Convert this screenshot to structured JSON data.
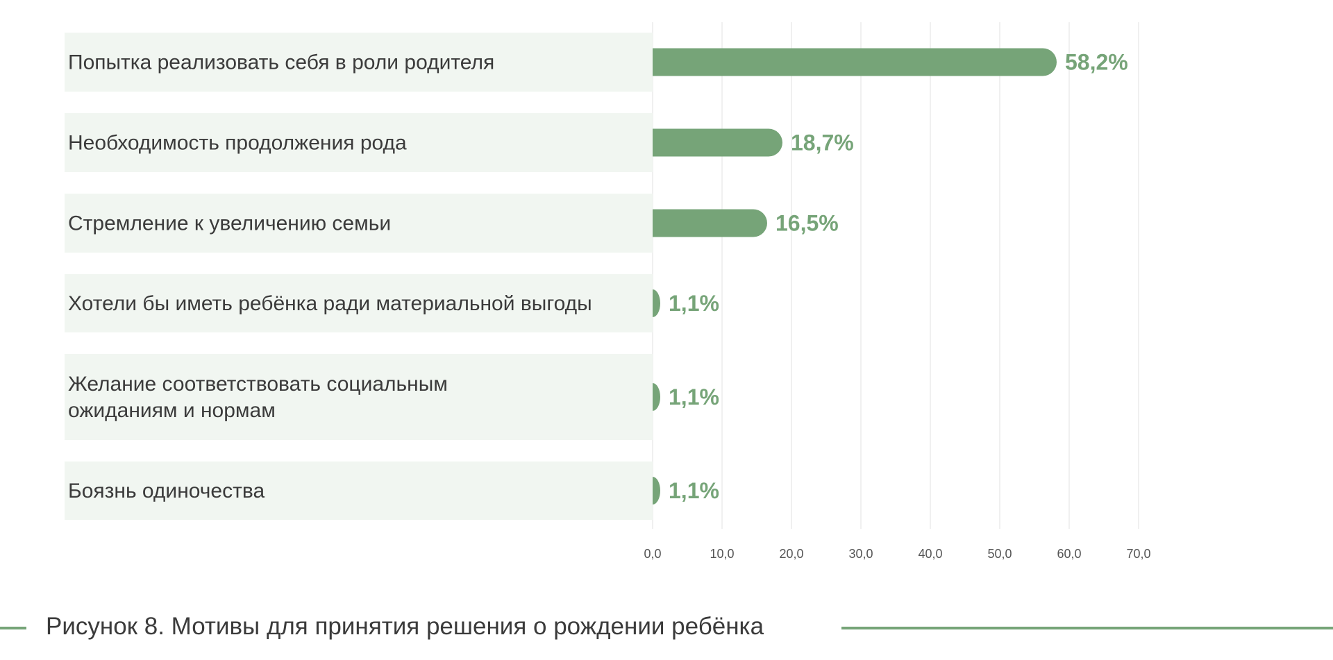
{
  "colors": {
    "bar": "#76a478",
    "label_band": "#f1f6f1",
    "value_text": "#76a478",
    "category_text": "#3b3b3b",
    "tick_text": "#555555",
    "grid": "#e6e6e6"
  },
  "chart_data": {
    "type": "bar",
    "orientation": "horizontal",
    "categories": [
      [
        "Попытка реализовать себя в роли родителя"
      ],
      [
        "Необходимость продолжения рода"
      ],
      [
        "Стремление к увеличению семьи"
      ],
      [
        "Хотели бы иметь ребёнка ради материальной выгоды"
      ],
      [
        "Желание соответствовать социальным",
        "ожиданиям и нормам"
      ],
      [
        "Боязнь одиночества"
      ]
    ],
    "values": [
      58.2,
      18.7,
      16.5,
      1.1,
      1.1,
      1.1
    ],
    "value_labels": [
      "58,2%",
      "18,7%",
      "16,5%",
      "1,1%",
      "1,1%",
      "1,1%"
    ],
    "xlim": [
      0,
      70
    ],
    "x_ticks": [
      0,
      10,
      20,
      30,
      40,
      50,
      60,
      70
    ],
    "x_tick_labels": [
      "0,0",
      "10,0",
      "20,0",
      "30,0",
      "40,0",
      "50,0",
      "60,0",
      "70,0"
    ],
    "grid": true
  },
  "caption": {
    "text": "Рисунок 8. Мотивы для принятия решения о рождении ребёнка"
  }
}
